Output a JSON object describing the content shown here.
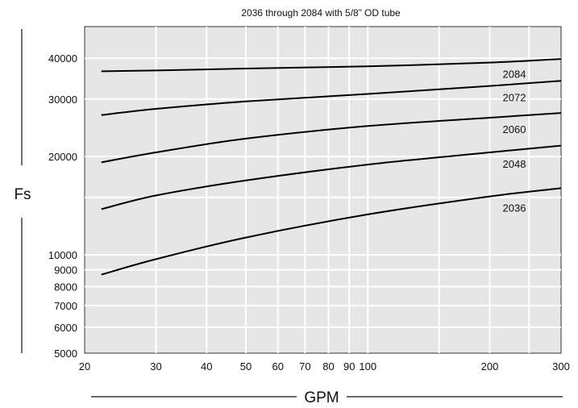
{
  "chart_data": {
    "type": "line",
    "title": "2036 through 2084 with 5/8” OD tube",
    "xlabel": "GPM",
    "ylabel": "Fs",
    "xscale": "log",
    "yscale": "log",
    "xlim": [
      20,
      300
    ],
    "ylim": [
      5000,
      50000
    ],
    "xticks": [
      20,
      30,
      40,
      50,
      60,
      70,
      80,
      90,
      100,
      200,
      300
    ],
    "xtick_labels": [
      "20",
      "30",
      "40",
      "50",
      "60",
      "70",
      "80",
      "90",
      "100",
      "200",
      "300"
    ],
    "yticks": [
      5000,
      6000,
      7000,
      8000,
      9000,
      10000,
      20000,
      30000,
      40000
    ],
    "ytick_labels": [
      "5000",
      "6000",
      "7000",
      "8000",
      "9000",
      "10000",
      "20000",
      "30000",
      "40000"
    ],
    "grid": true,
    "background": "#e6e6e6",
    "line_color": "#000000",
    "series": [
      {
        "name": "2084",
        "x": [
          22,
          30,
          50,
          100,
          200,
          300
        ],
        "y": [
          36500,
          36700,
          37200,
          37800,
          38800,
          39800
        ]
      },
      {
        "name": "2072",
        "x": [
          22,
          30,
          50,
          100,
          200,
          300
        ],
        "y": [
          26800,
          28000,
          29500,
          31100,
          32900,
          34100
        ]
      },
      {
        "name": "2060",
        "x": [
          22,
          30,
          50,
          100,
          200,
          300
        ],
        "y": [
          19200,
          20600,
          22700,
          24800,
          26300,
          27200
        ]
      },
      {
        "name": "2048",
        "x": [
          22,
          30,
          50,
          100,
          200,
          300
        ],
        "y": [
          13800,
          15200,
          16900,
          18900,
          20600,
          21600
        ]
      },
      {
        "name": "2036",
        "x": [
          22,
          30,
          50,
          100,
          200,
          300
        ],
        "y": [
          8700,
          9700,
          11300,
          13300,
          15100,
          16000
        ]
      }
    ]
  }
}
